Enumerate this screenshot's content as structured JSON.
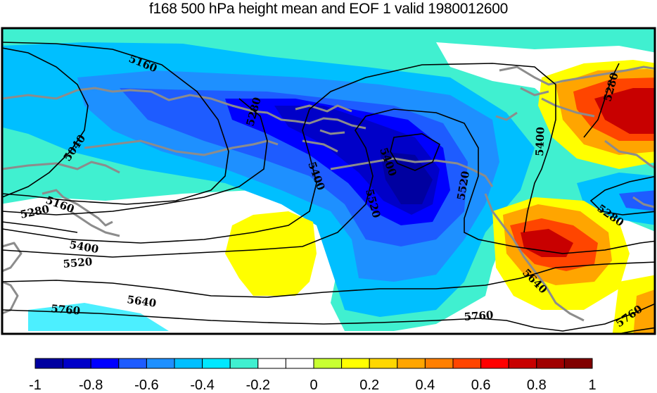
{
  "title": "f168 500 hPa height mean and EOF 1 valid 1980012600",
  "contour_labels": [
    {
      "id": "c5160-a",
      "text": "5160"
    },
    {
      "id": "c5040",
      "text": "5040"
    },
    {
      "id": "c5280-a",
      "text": "5280"
    },
    {
      "id": "c5400-a",
      "text": "5400"
    },
    {
      "id": "c5400-b",
      "text": "5400"
    },
    {
      "id": "c5520-a",
      "text": "5520"
    },
    {
      "id": "c5520-b",
      "text": "5520"
    },
    {
      "id": "c5400-c",
      "text": "5400"
    },
    {
      "id": "c5280-b",
      "text": "5280"
    },
    {
      "id": "c5160-b",
      "text": "5160"
    },
    {
      "id": "c5280-c",
      "text": "5280"
    },
    {
      "id": "c5400-d",
      "text": "5400"
    },
    {
      "id": "c5520-c",
      "text": "5520"
    },
    {
      "id": "c5640-a",
      "text": "5640"
    },
    {
      "id": "c5760-a",
      "text": "5760"
    },
    {
      "id": "c5760-b",
      "text": "5760"
    },
    {
      "id": "c5640-b",
      "text": "5640"
    },
    {
      "id": "c5760-c",
      "text": "5760"
    },
    {
      "id": "c5280-d",
      "text": "5280"
    }
  ],
  "colorbar": {
    "labels": [
      "-1",
      "-0.8",
      "-0.6",
      "-0.4",
      "-0.2",
      "0",
      "0.2",
      "0.4",
      "0.6",
      "0.8",
      "1"
    ],
    "colors": [
      "#0000a0",
      "#0000c8",
      "#0000ff",
      "#1e5cff",
      "#1e90ff",
      "#00bfff",
      "#00e8ff",
      "#40f0d0",
      "#ffffff",
      "#ffffff",
      "#c8ff32",
      "#ffff00",
      "#ffd700",
      "#ffa500",
      "#ff7f00",
      "#ff4500",
      "#ff0000",
      "#c80000",
      "#a00000",
      "#800000"
    ]
  },
  "colors": {
    "coastline": "#8c8c8c",
    "contour": "#000000",
    "frame": "#000000"
  }
}
